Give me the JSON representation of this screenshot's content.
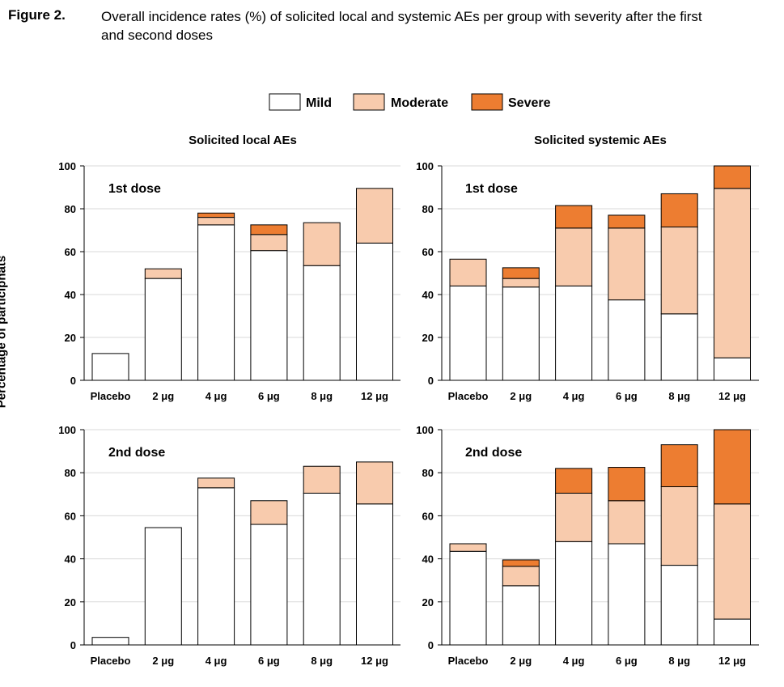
{
  "figure": {
    "label": "Figure 2.",
    "title": "Overall incidence rates (%) of solicited local and systemic AEs per group with severity after the first and second doses"
  },
  "colors": {
    "Mild": "#ffffff",
    "Moderate": "#f8cbad",
    "Severe": "#ed7d31"
  },
  "legend": [
    "Mild",
    "Moderate",
    "Severe"
  ],
  "ylabel": "Percentage of participnats",
  "columns": [
    "Solicited local AEs",
    "Solicited systemic AEs"
  ],
  "chart_data": [
    {
      "type": "bar",
      "stacked": true,
      "title": "Solicited local AEs",
      "subtitle": "1st dose",
      "categories": [
        "Placebo",
        "2 μg",
        "4 μg",
        "6 μg",
        "8 μg",
        "12 μg"
      ],
      "ylim": [
        0,
        100
      ],
      "yticks": [
        0,
        20,
        40,
        60,
        80,
        100
      ],
      "series": [
        {
          "name": "Mild",
          "values": [
            12.5,
            47.5,
            72.5,
            60.5,
            53.5,
            64
          ]
        },
        {
          "name": "Moderate",
          "values": [
            0,
            4.5,
            3.5,
            7.5,
            20,
            25.5
          ]
        },
        {
          "name": "Severe",
          "values": [
            0,
            0,
            2,
            4.5,
            0,
            0
          ]
        }
      ]
    },
    {
      "type": "bar",
      "stacked": true,
      "title": "Solicited systemic AEs",
      "subtitle": "1st dose",
      "categories": [
        "Placebo",
        "2 μg",
        "4 μg",
        "6 μg",
        "8 μg",
        "12 μg"
      ],
      "ylim": [
        0,
        100
      ],
      "yticks": [
        0,
        20,
        40,
        60,
        80,
        100
      ],
      "series": [
        {
          "name": "Mild",
          "values": [
            44,
            43.5,
            44,
            37.5,
            31,
            10.5
          ]
        },
        {
          "name": "Moderate",
          "values": [
            12.5,
            4,
            27,
            33.5,
            40.5,
            79
          ]
        },
        {
          "name": "Severe",
          "values": [
            0,
            5,
            10.5,
            6,
            15.5,
            10.5
          ]
        }
      ]
    },
    {
      "type": "bar",
      "stacked": true,
      "title": "Solicited local AEs",
      "subtitle": "2nd dose",
      "categories": [
        "Placebo",
        "2 μg",
        "4 μg",
        "6 μg",
        "8 μg",
        "12 μg"
      ],
      "ylim": [
        0,
        100
      ],
      "yticks": [
        0,
        20,
        40,
        60,
        80,
        100
      ],
      "series": [
        {
          "name": "Mild",
          "values": [
            3.5,
            54.5,
            73,
            56,
            70.5,
            65.5
          ]
        },
        {
          "name": "Moderate",
          "values": [
            0,
            0,
            4.5,
            11,
            12.5,
            19.5
          ]
        },
        {
          "name": "Severe",
          "values": [
            0,
            0,
            0,
            0,
            0,
            0
          ]
        }
      ]
    },
    {
      "type": "bar",
      "stacked": true,
      "title": "Solicited systemic AEs",
      "subtitle": "2nd dose",
      "categories": [
        "Placebo",
        "2 μg",
        "4 μg",
        "6 μg",
        "8 μg",
        "12 μg"
      ],
      "ylim": [
        0,
        100
      ],
      "yticks": [
        0,
        20,
        40,
        60,
        80,
        100
      ],
      "series": [
        {
          "name": "Mild",
          "values": [
            43.5,
            27.5,
            48,
            47,
            37,
            12
          ]
        },
        {
          "name": "Moderate",
          "values": [
            3.5,
            9,
            22.5,
            20,
            36.5,
            53.5
          ]
        },
        {
          "name": "Severe",
          "values": [
            0,
            3,
            11.5,
            15.5,
            19.5,
            34.5
          ]
        }
      ]
    }
  ]
}
